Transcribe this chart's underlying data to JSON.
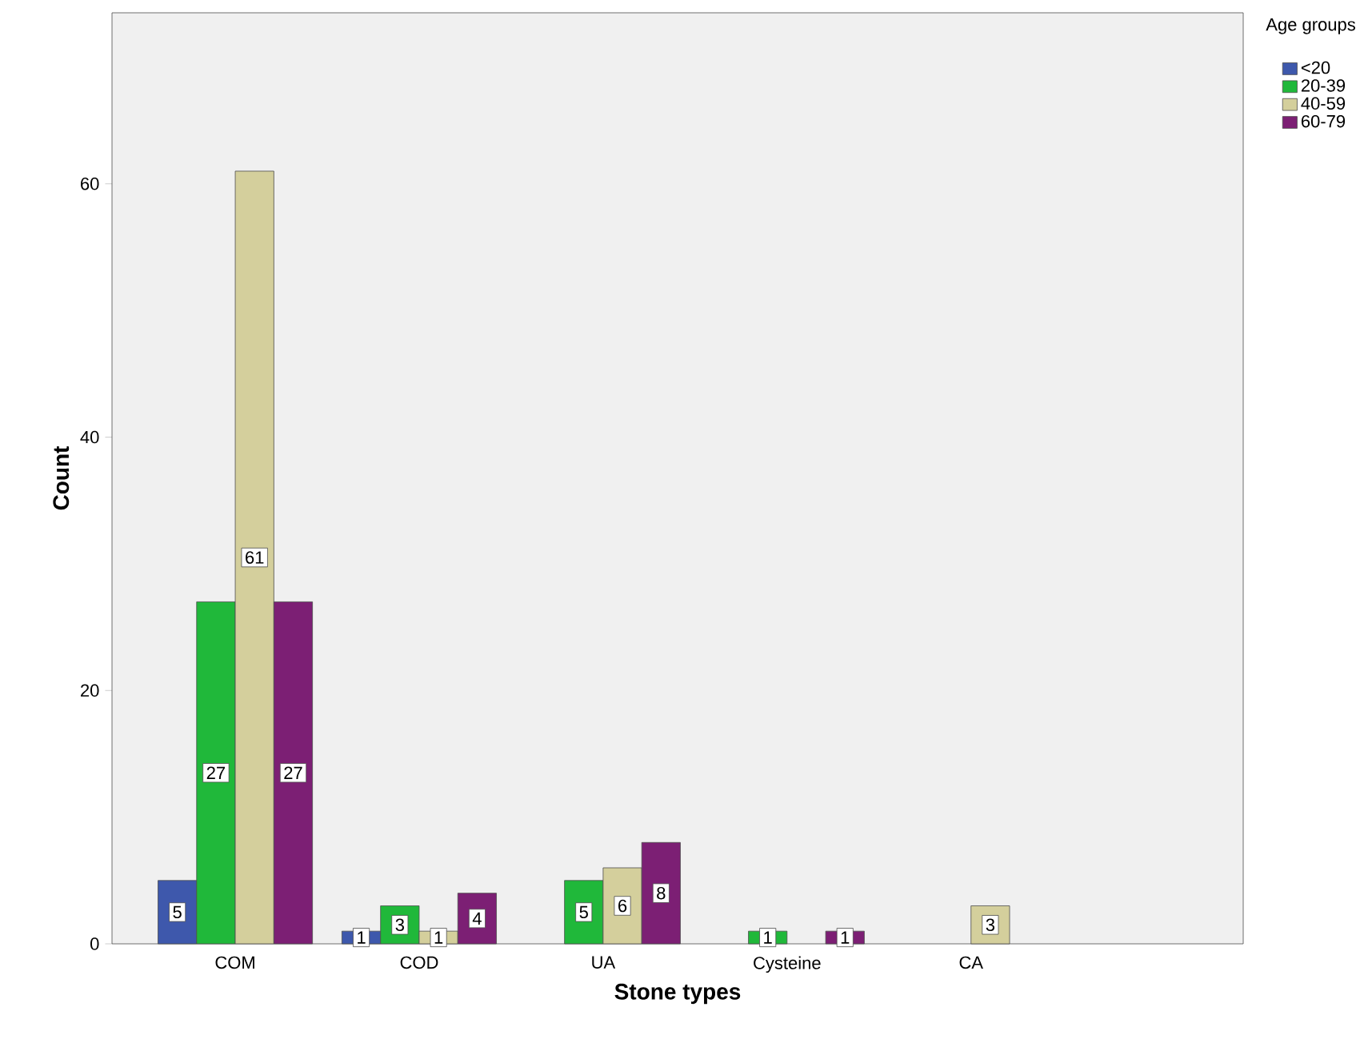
{
  "chart_data": {
    "type": "bar",
    "xlabel": "Stone types",
    "ylabel": "Count",
    "legend_title": "Age groups",
    "categories": [
      "COM",
      "COD",
      "UA",
      "Cysteine",
      "CA"
    ],
    "series": [
      {
        "name": "<20",
        "color": "#3e58ac",
        "values": [
          5,
          1,
          null,
          null,
          null
        ]
      },
      {
        "name": "20-39",
        "color": "#20b83a",
        "values": [
          27,
          3,
          5,
          1,
          null
        ]
      },
      {
        "name": "40-59",
        "color": "#d4cf9c",
        "values": [
          61,
          1,
          6,
          null,
          3
        ]
      },
      {
        "name": "60-79",
        "color": "#7c1f74",
        "values": [
          27,
          4,
          8,
          1,
          null
        ]
      }
    ],
    "ylim": [
      0,
      73.5
    ],
    "yticks": [
      0,
      20,
      40,
      60
    ],
    "grid": false,
    "legend": "top right",
    "data_labels": true
  }
}
